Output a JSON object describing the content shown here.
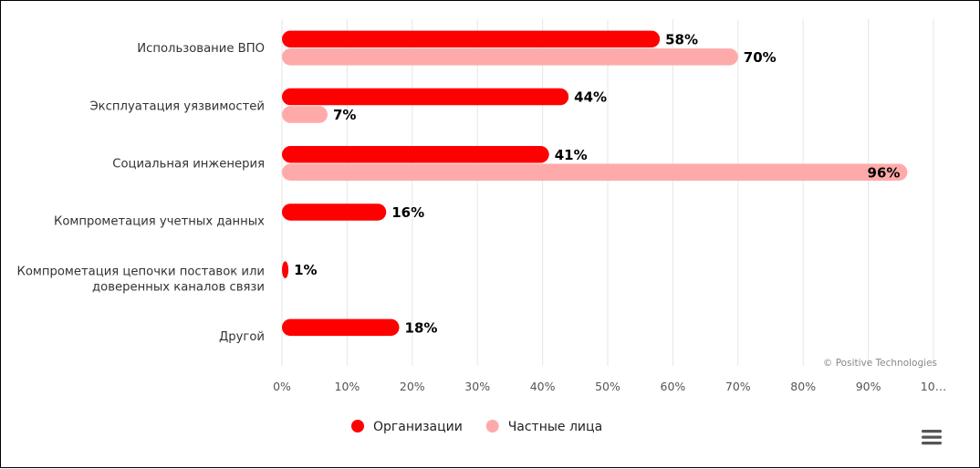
{
  "chart_data": {
    "type": "bar",
    "orientation": "horizontal",
    "categories": [
      [
        "Использование ВПО"
      ],
      [
        "Эксплуатация уязвимостей"
      ],
      [
        "Социальная инженерия"
      ],
      [
        "Компрометация учетных данных"
      ],
      [
        "Компрометация цепочки поставок или",
        "доверенных каналов связи"
      ],
      [
        "Другой"
      ]
    ],
    "series": [
      {
        "name": "Организации",
        "color": "#ff0000",
        "values": [
          58,
          44,
          41,
          16,
          1,
          18
        ]
      },
      {
        "name": "Частные лица",
        "color": "#ffaaaa",
        "values": [
          70,
          7,
          96,
          null,
          null,
          null
        ]
      }
    ],
    "data_labels": [
      [
        "58%",
        "44%",
        "41%",
        "16%",
        "1%",
        "18%"
      ],
      [
        "70%",
        "7%",
        "96%",
        null,
        null,
        null
      ]
    ],
    "xlim": [
      0,
      100
    ],
    "x_ticks": [
      "0%",
      "10%",
      "20%",
      "30%",
      "40%",
      "50%",
      "60%",
      "70%",
      "80%",
      "90%",
      "10…"
    ],
    "grid": "vertical",
    "legend_position": "bottom-center",
    "credit": "© Positive Technologies"
  },
  "menu_icon": "hamburger-menu-icon"
}
